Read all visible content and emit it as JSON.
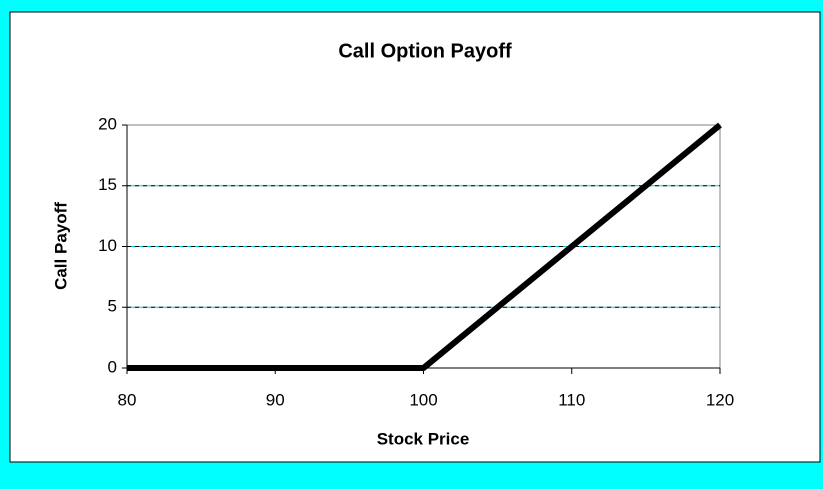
{
  "chart_data": {
    "type": "line",
    "title": "Call Option Payoff",
    "x_label": "Stock Price",
    "y_label": "Call Payoff",
    "x": [
      80,
      100,
      120
    ],
    "series": [
      {
        "name": "Call Payoff",
        "color": "#000000",
        "values": [
          0,
          0,
          20
        ]
      }
    ],
    "xlim": [
      80,
      120
    ],
    "xticks": [
      80,
      90,
      100,
      110,
      120
    ],
    "ylim": [
      0,
      20
    ],
    "yticks": [
      0,
      5,
      10,
      15,
      20
    ],
    "grid": true
  }
}
